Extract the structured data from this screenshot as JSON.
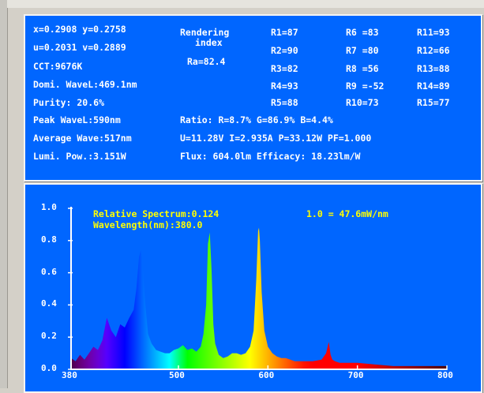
{
  "readout": {
    "xy": "x=0.2908 y=0.2758",
    "uv": "u=0.2031 v=0.2889",
    "cct": "CCT:9676K",
    "dominant": "Domi. WaveL:469.1nm",
    "purity": "Purity:  20.6%",
    "rendering_line1": "Rendering",
    "rendering_line2": "index",
    "ra": "Ra=82.4",
    "r1": "R1=87",
    "r2": "R2=90",
    "r3": "R3=82",
    "r4": "R4=93",
    "r5": "R5=88",
    "r6": "R6 =83",
    "r7": "R7 =80",
    "r8": "R8 =56",
    "r9": "R9 =-52",
    "r10": "R10=73",
    "r11": "R11=93",
    "r12": "R12=66",
    "r13": "R13=88",
    "r14": "R14=89",
    "r15": "R15=77",
    "peak": "Peak WaveL:590nm",
    "ratio": "Ratio: R=8.7% G=86.9% B=4.4%",
    "average": "Average Wave:517nm",
    "electrical": "U=11.28V I=2.935A P=33.12W PF=1.000",
    "lumi": "Lumi. Pow.:3.151W",
    "flux": "Flux: 604.0lm Efficacy: 18.23lm/W"
  },
  "spectrum": {
    "relative_label": "Relative Spectrum:0.124",
    "wavelength_label": "Wavelength(nm):380.0",
    "scale_label": "1.0 = 47.6mW/nm"
  },
  "colors": {
    "panel_blue": "#0066ff",
    "label_yellow": "#ffff00",
    "text_white": "#ffffff"
  },
  "chart_data": {
    "type": "area",
    "title": "",
    "xlabel": "",
    "ylabel": "",
    "xlim": [
      380,
      800
    ],
    "ylim": [
      0,
      1.0
    ],
    "x_ticks": [
      "380",
      "500",
      "600",
      "700",
      "800"
    ],
    "x_tick_values": [
      380,
      500,
      600,
      700,
      800
    ],
    "y_ticks": [
      "0.0",
      "0.2",
      "0.4",
      "0.6",
      "0.8",
      "1.0"
    ],
    "y_tick_values": [
      0,
      0.2,
      0.4,
      0.6,
      0.8,
      1.0
    ],
    "fill": "wavelength-colored spectrum",
    "series": [
      {
        "x": [
          380,
          385,
          390,
          395,
          400,
          405,
          410,
          415,
          420,
          425,
          430,
          435,
          440,
          445,
          450,
          453,
          456,
          458,
          460,
          463,
          466,
          470,
          475,
          480,
          485,
          490,
          495,
          500,
          505,
          510,
          515,
          520,
          525,
          528,
          531,
          533,
          535,
          537,
          539,
          541,
          545,
          550,
          555,
          560,
          565,
          570,
          575,
          580,
          584,
          587,
          589,
          590,
          591,
          593,
          596,
          600,
          605,
          610,
          615,
          620,
          625,
          630,
          640,
          650,
          660,
          665,
          668,
          670,
          672,
          675,
          680,
          690,
          700,
          720,
          740,
          760,
          780,
          800
        ],
        "y": [
          0.07,
          0.05,
          0.09,
          0.06,
          0.1,
          0.14,
          0.12,
          0.18,
          0.32,
          0.24,
          0.2,
          0.28,
          0.26,
          0.32,
          0.37,
          0.5,
          0.7,
          0.74,
          0.64,
          0.4,
          0.22,
          0.16,
          0.12,
          0.11,
          0.1,
          0.1,
          0.12,
          0.13,
          0.15,
          0.12,
          0.13,
          0.11,
          0.14,
          0.22,
          0.4,
          0.78,
          0.85,
          0.62,
          0.28,
          0.16,
          0.09,
          0.07,
          0.08,
          0.1,
          0.1,
          0.09,
          0.1,
          0.14,
          0.24,
          0.56,
          0.86,
          0.88,
          0.8,
          0.48,
          0.24,
          0.14,
          0.1,
          0.08,
          0.07,
          0.07,
          0.06,
          0.05,
          0.05,
          0.05,
          0.06,
          0.1,
          0.17,
          0.09,
          0.06,
          0.05,
          0.04,
          0.04,
          0.04,
          0.03,
          0.02,
          0.02,
          0.02,
          0.02
        ]
      }
    ]
  }
}
